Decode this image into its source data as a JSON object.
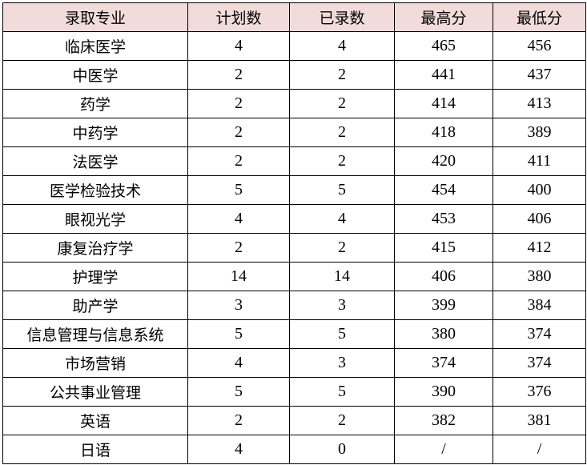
{
  "header": {
    "major": "录取专业",
    "plan": "计划数",
    "admitted": "已录数",
    "max": "最高分",
    "min": "最低分"
  },
  "header_bg": "#f2dcdb",
  "rows": [
    {
      "major": "临床医学",
      "plan": "4",
      "admitted": "4",
      "max": "465",
      "min": "456"
    },
    {
      "major": "中医学",
      "plan": "2",
      "admitted": "2",
      "max": "441",
      "min": "437"
    },
    {
      "major": "药学",
      "plan": "2",
      "admitted": "2",
      "max": "414",
      "min": "413"
    },
    {
      "major": "中药学",
      "plan": "2",
      "admitted": "2",
      "max": "418",
      "min": "389"
    },
    {
      "major": "法医学",
      "plan": "2",
      "admitted": "2",
      "max": "420",
      "min": "411"
    },
    {
      "major": "医学检验技术",
      "plan": "5",
      "admitted": "5",
      "max": "454",
      "min": "400"
    },
    {
      "major": "眼视光学",
      "plan": "4",
      "admitted": "4",
      "max": "453",
      "min": "406"
    },
    {
      "major": "康复治疗学",
      "plan": "2",
      "admitted": "2",
      "max": "415",
      "min": "412"
    },
    {
      "major": "护理学",
      "plan": "14",
      "admitted": "14",
      "max": "406",
      "min": "380"
    },
    {
      "major": "助产学",
      "plan": "3",
      "admitted": "3",
      "max": "399",
      "min": "384"
    },
    {
      "major": "信息管理与信息系统",
      "plan": "5",
      "admitted": "5",
      "max": "380",
      "min": "374"
    },
    {
      "major": "市场营销",
      "plan": "4",
      "admitted": "3",
      "max": "374",
      "min": "374"
    },
    {
      "major": "公共事业管理",
      "plan": "5",
      "admitted": "5",
      "max": "390",
      "min": "376"
    },
    {
      "major": "英语",
      "plan": "2",
      "admitted": "2",
      "max": "382",
      "min": "381"
    },
    {
      "major": "日语",
      "plan": "4",
      "admitted": "0",
      "max": "/",
      "min": "/"
    }
  ]
}
